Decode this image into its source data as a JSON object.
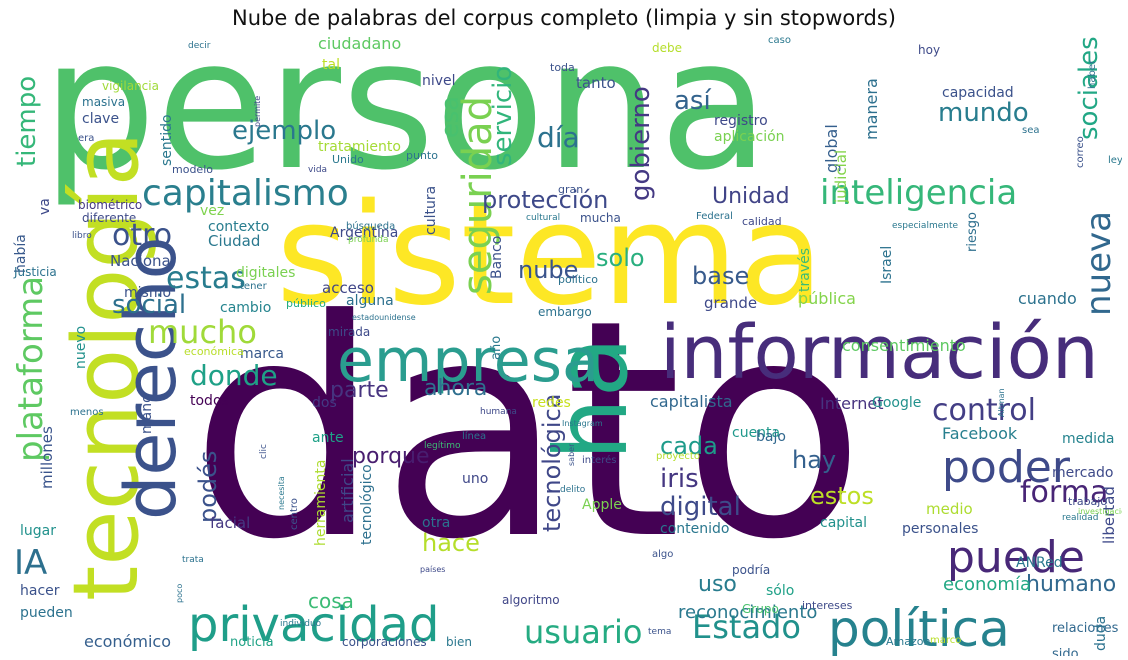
{
  "title": "Nube de palabras del corpus completo (limpia y sin stopwords)",
  "words": [
    {
      "text": "persona",
      "color": "#4fc16a"
    },
    {
      "text": "dato",
      "color": "#440154"
    },
    {
      "text": "sistema",
      "color": "#fde725"
    },
    {
      "text": "tecnología",
      "color": "#c2df23"
    },
    {
      "text": "derecho",
      "color": "#3b528b"
    },
    {
      "text": "ha",
      "color": "#22a884"
    },
    {
      "text": "información",
      "color": "#472d7b"
    },
    {
      "text": "empresa",
      "color": "#2a9d8f"
    },
    {
      "text": "privacidad",
      "color": "#1f9e89"
    },
    {
      "text": "política",
      "color": "#26828e"
    },
    {
      "text": "puede",
      "color": "#482878"
    },
    {
      "text": "poder",
      "color": "#3e4a89"
    },
    {
      "text": "capitalismo",
      "color": "#2a7f8e"
    },
    {
      "text": "inteligencia",
      "color": "#35b779"
    },
    {
      "text": "seguridad",
      "color": "#7ad151"
    },
    {
      "text": "plataforma",
      "color": "#5ec962"
    },
    {
      "text": "usuario",
      "color": "#25ab82"
    },
    {
      "text": "Estado",
      "color": "#21918c"
    },
    {
      "text": "forma",
      "color": "#482576"
    },
    {
      "text": "control",
      "color": "#433e85"
    },
    {
      "text": "nueva",
      "color": "#31688e"
    },
    {
      "text": "IA",
      "color": "#2d708e"
    },
    {
      "text": "mucho",
      "color": "#a0da39"
    },
    {
      "text": "otro",
      "color": "#3b528b"
    },
    {
      "text": "estas",
      "color": "#287c8e"
    },
    {
      "text": "donde",
      "color": "#1fa187"
    },
    {
      "text": "social",
      "color": "#2d708e"
    },
    {
      "text": "ejemplo",
      "color": "#2a788e"
    },
    {
      "text": "tiempo",
      "color": "#35b779"
    },
    {
      "text": "protección",
      "color": "#3e4989"
    },
    {
      "text": "Unidad",
      "color": "#414487"
    },
    {
      "text": "día",
      "color": "#2c728e"
    },
    {
      "text": "esa",
      "color": "#48c16e"
    },
    {
      "text": "servicio",
      "color": "#31b57b"
    },
    {
      "text": "gobierno",
      "color": "#443983"
    },
    {
      "text": "así",
      "color": "#33638d"
    },
    {
      "text": "mundo",
      "color": "#287d8e"
    },
    {
      "text": "sociales",
      "color": "#22a785"
    },
    {
      "text": "nube",
      "color": "#3a548c"
    },
    {
      "text": "solo",
      "color": "#29af7f"
    },
    {
      "text": "base",
      "color": "#375a8c"
    },
    {
      "text": "parte",
      "color": "#46337f"
    },
    {
      "text": "ahora",
      "color": "#2e6f8e"
    },
    {
      "text": "porque",
      "color": "#481d6f"
    },
    {
      "text": "cada",
      "color": "#1e9b8a"
    },
    {
      "text": "iris",
      "color": "#453781"
    },
    {
      "text": "hay",
      "color": "#34608d"
    },
    {
      "text": "digital",
      "color": "#3e4a89"
    },
    {
      "text": "estos",
      "color": "#bddf26"
    },
    {
      "text": "tecnológica",
      "color": "#3f4788"
    },
    {
      "text": "humano",
      "color": "#31688e"
    },
    {
      "text": "hace",
      "color": "#b5de2b"
    },
    {
      "text": "uso",
      "color": "#287c8e"
    },
    {
      "text": "podés",
      "color": "#3b528b"
    },
    {
      "text": "economía",
      "color": "#22a884"
    },
    {
      "text": "reconocimiento",
      "color": "#2a788e"
    },
    {
      "text": "cosa",
      "color": "#3bbb75"
    },
    {
      "text": "económico",
      "color": "#355f8d"
    },
    {
      "text": "Facebook",
      "color": "#277f8e"
    },
    {
      "text": "Internet",
      "color": "#46337f"
    },
    {
      "text": "capitalista",
      "color": "#31688e"
    },
    {
      "text": "consentimiento",
      "color": "#5ec962"
    },
    {
      "text": "pública",
      "color": "#84d44b"
    },
    {
      "text": "grande",
      "color": "#3e4989"
    },
    {
      "text": "cuando",
      "color": "#2c728e"
    },
    {
      "text": "acceso",
      "color": "#404688"
    },
    {
      "text": "alguna",
      "color": "#2d708e"
    },
    {
      "text": "Ciudad",
      "color": "#2a788e"
    },
    {
      "text": "Nacional",
      "color": "#3b528b"
    },
    {
      "text": "contexto",
      "color": "#287d8e"
    },
    {
      "text": "vez",
      "color": "#7fd34e"
    },
    {
      "text": "cambio",
      "color": "#25848e"
    },
    {
      "text": "marca",
      "color": "#38598c"
    },
    {
      "text": "todos",
      "color": "#440154"
    },
    {
      "text": "dos",
      "color": "#443983"
    },
    {
      "text": "ante",
      "color": "#1fa187"
    },
    {
      "text": "redes",
      "color": "#c8e020"
    },
    {
      "text": "cuenta",
      "color": "#1f988b"
    },
    {
      "text": "bajo",
      "color": "#31688e"
    },
    {
      "text": "medida",
      "color": "#25838e"
    },
    {
      "text": "mercado",
      "color": "#3e4a89"
    },
    {
      "text": "libertad",
      "color": "#3e4989"
    },
    {
      "text": "personales",
      "color": "#3b528b"
    },
    {
      "text": "capital",
      "color": "#21918c"
    },
    {
      "text": "contenido",
      "color": "#2a778e"
    },
    {
      "text": "Apple",
      "color": "#7ad151"
    },
    {
      "text": "uno",
      "color": "#3f4788"
    },
    {
      "text": "otra",
      "color": "#2c728e"
    },
    {
      "text": "facial",
      "color": "#453882"
    },
    {
      "text": "artificial",
      "color": "#404688"
    },
    {
      "text": "tecnológico",
      "color": "#2d708e"
    },
    {
      "text": "herramienta",
      "color": "#addc30"
    },
    {
      "text": "millones",
      "color": "#3a548c"
    },
    {
      "text": "lugar",
      "color": "#21918c"
    },
    {
      "text": "hacer",
      "color": "#3b528b"
    },
    {
      "text": "pueden",
      "color": "#2c728e"
    },
    {
      "text": "noticia",
      "color": "#20a386"
    },
    {
      "text": "corporaciones",
      "color": "#3b528b"
    },
    {
      "text": "bien",
      "color": "#2a788e"
    },
    {
      "text": "sido",
      "color": "#31688e"
    },
    {
      "text": "relaciones",
      "color": "#31688e"
    },
    {
      "text": "intereses",
      "color": "#3e4a89"
    },
    {
      "text": "algoritmo",
      "color": "#404688"
    },
    {
      "text": "Grupo",
      "color": "#4ac16d"
    },
    {
      "text": "Amazon",
      "color": "#2a788e"
    },
    {
      "text": "marco",
      "color": "#b8de29"
    },
    {
      "text": "duda",
      "color": "#2c728e"
    },
    {
      "text": "medio",
      "color": "#addc30"
    },
    {
      "text": "ANRed",
      "color": "#2a788e"
    },
    {
      "text": "sólo",
      "color": "#1fa187"
    },
    {
      "text": "podría",
      "color": "#3b528b"
    },
    {
      "text": "Google",
      "color": "#21918c"
    },
    {
      "text": "través",
      "color": "#3dbc74"
    },
    {
      "text": "Israel",
      "color": "#2c728e"
    },
    {
      "text": "riesgo",
      "color": "#2e6f8e"
    },
    {
      "text": "global",
      "color": "#355f8d"
    },
    {
      "text": "judicial",
      "color": "#84d44b"
    },
    {
      "text": "manera",
      "color": "#2d708e"
    },
    {
      "text": "capacidad",
      "color": "#3b528b"
    },
    {
      "text": "Argentina",
      "color": "#3e4a89"
    },
    {
      "text": "político",
      "color": "#2c728e"
    },
    {
      "text": "año",
      "color": "#2a788e"
    },
    {
      "text": "Banco",
      "color": "#3b528b"
    },
    {
      "text": "embargo",
      "color": "#2c728e"
    },
    {
      "text": "público",
      "color": "#25ab82"
    },
    {
      "text": "digitales",
      "color": "#7ad151"
    },
    {
      "text": "mismo",
      "color": "#3b528b"
    },
    {
      "text": "tener",
      "color": "#2c728e"
    },
    {
      "text": "nuevo",
      "color": "#21918c"
    },
    {
      "text": "va",
      "color": "#3e4989"
    },
    {
      "text": "había",
      "color": "#38598c"
    },
    {
      "text": "Justicia",
      "color": "#2c728e"
    },
    {
      "text": "diferente",
      "color": "#3e4a89"
    },
    {
      "text": "biométrico",
      "color": "#443983"
    },
    {
      "text": "modelo",
      "color": "#3b528b"
    },
    {
      "text": "sentido",
      "color": "#2a788e"
    },
    {
      "text": "clave",
      "color": "#3b528b"
    },
    {
      "text": "masiva",
      "color": "#2c728e"
    },
    {
      "text": "vigilancia",
      "color": "#a0da39"
    },
    {
      "text": "era",
      "color": "#3b528b"
    },
    {
      "text": "permite",
      "color": "#3e4a89"
    },
    {
      "text": "decir",
      "color": "#2c728e"
    },
    {
      "text": "ciudadano",
      "color": "#5ec962"
    },
    {
      "text": "tal",
      "color": "#bddf26"
    },
    {
      "text": "nivel",
      "color": "#3e4989"
    },
    {
      "text": "tanto",
      "color": "#3b528b"
    },
    {
      "text": "debe",
      "color": "#b5de2b"
    },
    {
      "text": "toda",
      "color": "#3b528b"
    },
    {
      "text": "caso",
      "color": "#2a788e"
    },
    {
      "text": "hoy",
      "color": "#3e4a89"
    },
    {
      "text": "sea",
      "color": "#2c728e"
    },
    {
      "text": "correo",
      "color": "#3b528b"
    },
    {
      "text": "haber",
      "color": "#2c728e"
    },
    {
      "text": "ley",
      "color": "#2a788e"
    },
    {
      "text": "aplicación",
      "color": "#7ad151"
    },
    {
      "text": "registro",
      "color": "#3e4989"
    },
    {
      "text": "cultura",
      "color": "#3b528b"
    },
    {
      "text": "punto",
      "color": "#2c728e"
    },
    {
      "text": "Unido",
      "color": "#2a788e"
    },
    {
      "text": "tratamiento",
      "color": "#a5db36"
    },
    {
      "text": "vida",
      "color": "#3e4a89"
    },
    {
      "text": "gran",
      "color": "#3b528b"
    },
    {
      "text": "búsqueda",
      "color": "#2c728e"
    },
    {
      "text": "cultural",
      "color": "#2a788e"
    },
    {
      "text": "profunda",
      "color": "#7ad151"
    },
    {
      "text": "mucha",
      "color": "#3b528b"
    },
    {
      "text": "Federal",
      "color": "#2c728e"
    },
    {
      "text": "calidad",
      "color": "#3e4989"
    },
    {
      "text": "especialmente",
      "color": "#2a788e"
    },
    {
      "text": "libro",
      "color": "#3b528b"
    },
    {
      "text": "estadounidense",
      "color": "#2c728e"
    },
    {
      "text": "mirada",
      "color": "#3e4a89"
    },
    {
      "text": "económica",
      "color": "#b8de29"
    },
    {
      "text": "mano",
      "color": "#3b528b"
    },
    {
      "text": "menos",
      "color": "#2c728e"
    },
    {
      "text": "humana",
      "color": "#3e4989"
    },
    {
      "text": "legítimo",
      "color": "#3dbc74"
    },
    {
      "text": "clic",
      "color": "#3b528b"
    },
    {
      "text": "línea",
      "color": "#2c728e"
    },
    {
      "text": "necesita",
      "color": "#2a788e"
    },
    {
      "text": "centro",
      "color": "#3b528b"
    },
    {
      "text": "delito",
      "color": "#2c728e"
    },
    {
      "text": "interés",
      "color": "#3e4a89"
    },
    {
      "text": "proyecto",
      "color": "#b5de2b"
    },
    {
      "text": "Instagram",
      "color": "#2a788e"
    },
    {
      "text": "saber",
      "color": "#3b528b"
    },
    {
      "text": "trata",
      "color": "#2c728e"
    },
    {
      "text": "países",
      "color": "#3e4989"
    },
    {
      "text": "algo",
      "color": "#3b528b"
    },
    {
      "text": "poco",
      "color": "#2c728e"
    },
    {
      "text": "individuo",
      "color": "#2a788e"
    },
    {
      "text": "tema",
      "color": "#3b528b"
    },
    {
      "text": "Altman",
      "color": "#2c728e"
    },
    {
      "text": "trabajo",
      "color": "#3e4a89"
    },
    {
      "text": "realidad",
      "color": "#2a788e"
    },
    {
      "text": "investigación",
      "color": "#7ad151"
    },
    {
      "text": "orden",
      "color": "#3b528b"
    },
    {
      "text": "ello",
      "color": "#2c728e"
    },
    {
      "text": "tipo",
      "color": "#3e4989"
    },
    {
      "text": "x",
      "color": "#2a788e"
    }
  ]
}
